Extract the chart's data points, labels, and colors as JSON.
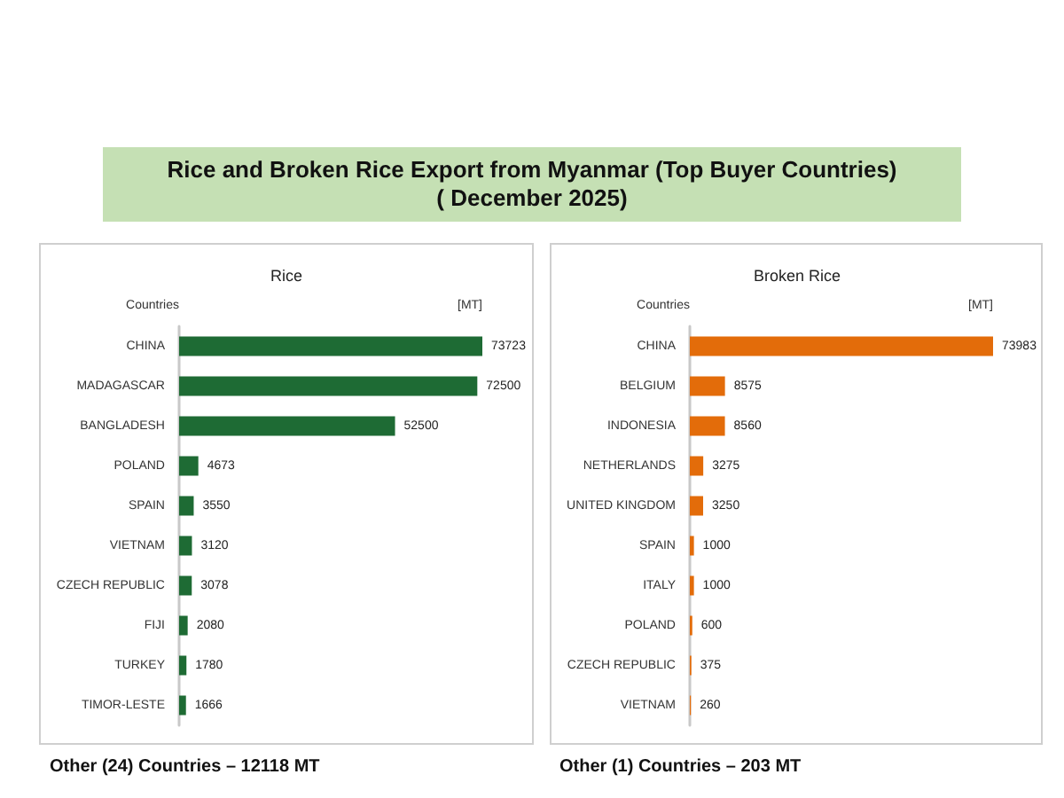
{
  "chart_data": [
    {
      "type": "other",
      "title": "Rice and Broken Rice Export from Myanmar (Top Buyer Countries)\n( December 2025)"
    },
    {
      "type": "bar",
      "orientation": "horizontal",
      "title": "Rice",
      "ylabel": "Countries",
      "xlabel": "[MT]",
      "categories": [
        "CHINA",
        "MADAGASCAR",
        "BANGLADESH",
        "POLAND",
        "SPAIN",
        "VIETNAM",
        "CZECH REPUBLIC",
        "FIJI",
        "TURKEY",
        "TIMOR-LESTE"
      ],
      "values": [
        73723,
        72500,
        52500,
        4673,
        3550,
        3120,
        3078,
        2080,
        1780,
        1666
      ],
      "color": "#1e6b34",
      "data_labels": true,
      "tick_labels": "y",
      "annotations": [
        "Other (24) Countries – 12118 MT"
      ]
    },
    {
      "type": "bar",
      "orientation": "horizontal",
      "title": "Broken Rice",
      "ylabel": "Countries",
      "xlabel": "[MT]",
      "categories": [
        "CHINA",
        "BELGIUM",
        "INDONESIA",
        "NETHERLANDS",
        "UNITED KINGDOM",
        "SPAIN",
        "ITALY",
        "POLAND",
        "CZECH REPUBLIC",
        "VIETNAM"
      ],
      "values": [
        73983,
        8575,
        8560,
        3275,
        3250,
        1000,
        1000,
        600,
        375,
        260
      ],
      "color": "#e36c0a",
      "data_labels": true,
      "tick_labels": "y",
      "annotations": [
        "Other (1) Countries – 203 MT"
      ]
    }
  ]
}
